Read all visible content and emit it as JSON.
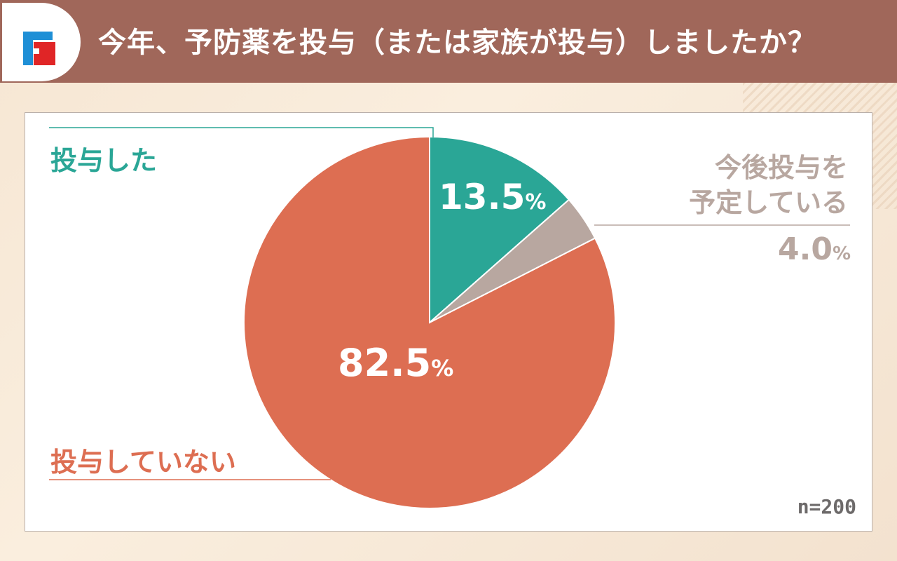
{
  "header": {
    "title": "今年、予防薬を投与（または家族が投与）しましたか？",
    "logo": "FJ logo"
  },
  "colors": {
    "header": "#a0675a",
    "given": "#2aa696",
    "planned": "#b8a7a0",
    "not_given": "#dd6e52"
  },
  "chart_data": {
    "type": "pie",
    "start": "top-clockwise",
    "slices": [
      {
        "label": "投与した",
        "value": 13.5,
        "value_text": "13.5",
        "color": "#2aa696"
      },
      {
        "label_lines": [
          "今後投与を",
          "予定している"
        ],
        "value": 4.0,
        "value_text": "4.0",
        "color": "#b8a7a0"
      },
      {
        "label": "投与していない",
        "value": 82.5,
        "value_text": "82.5",
        "color": "#dd6e52"
      }
    ],
    "unit": "%",
    "sample": "n=200"
  }
}
